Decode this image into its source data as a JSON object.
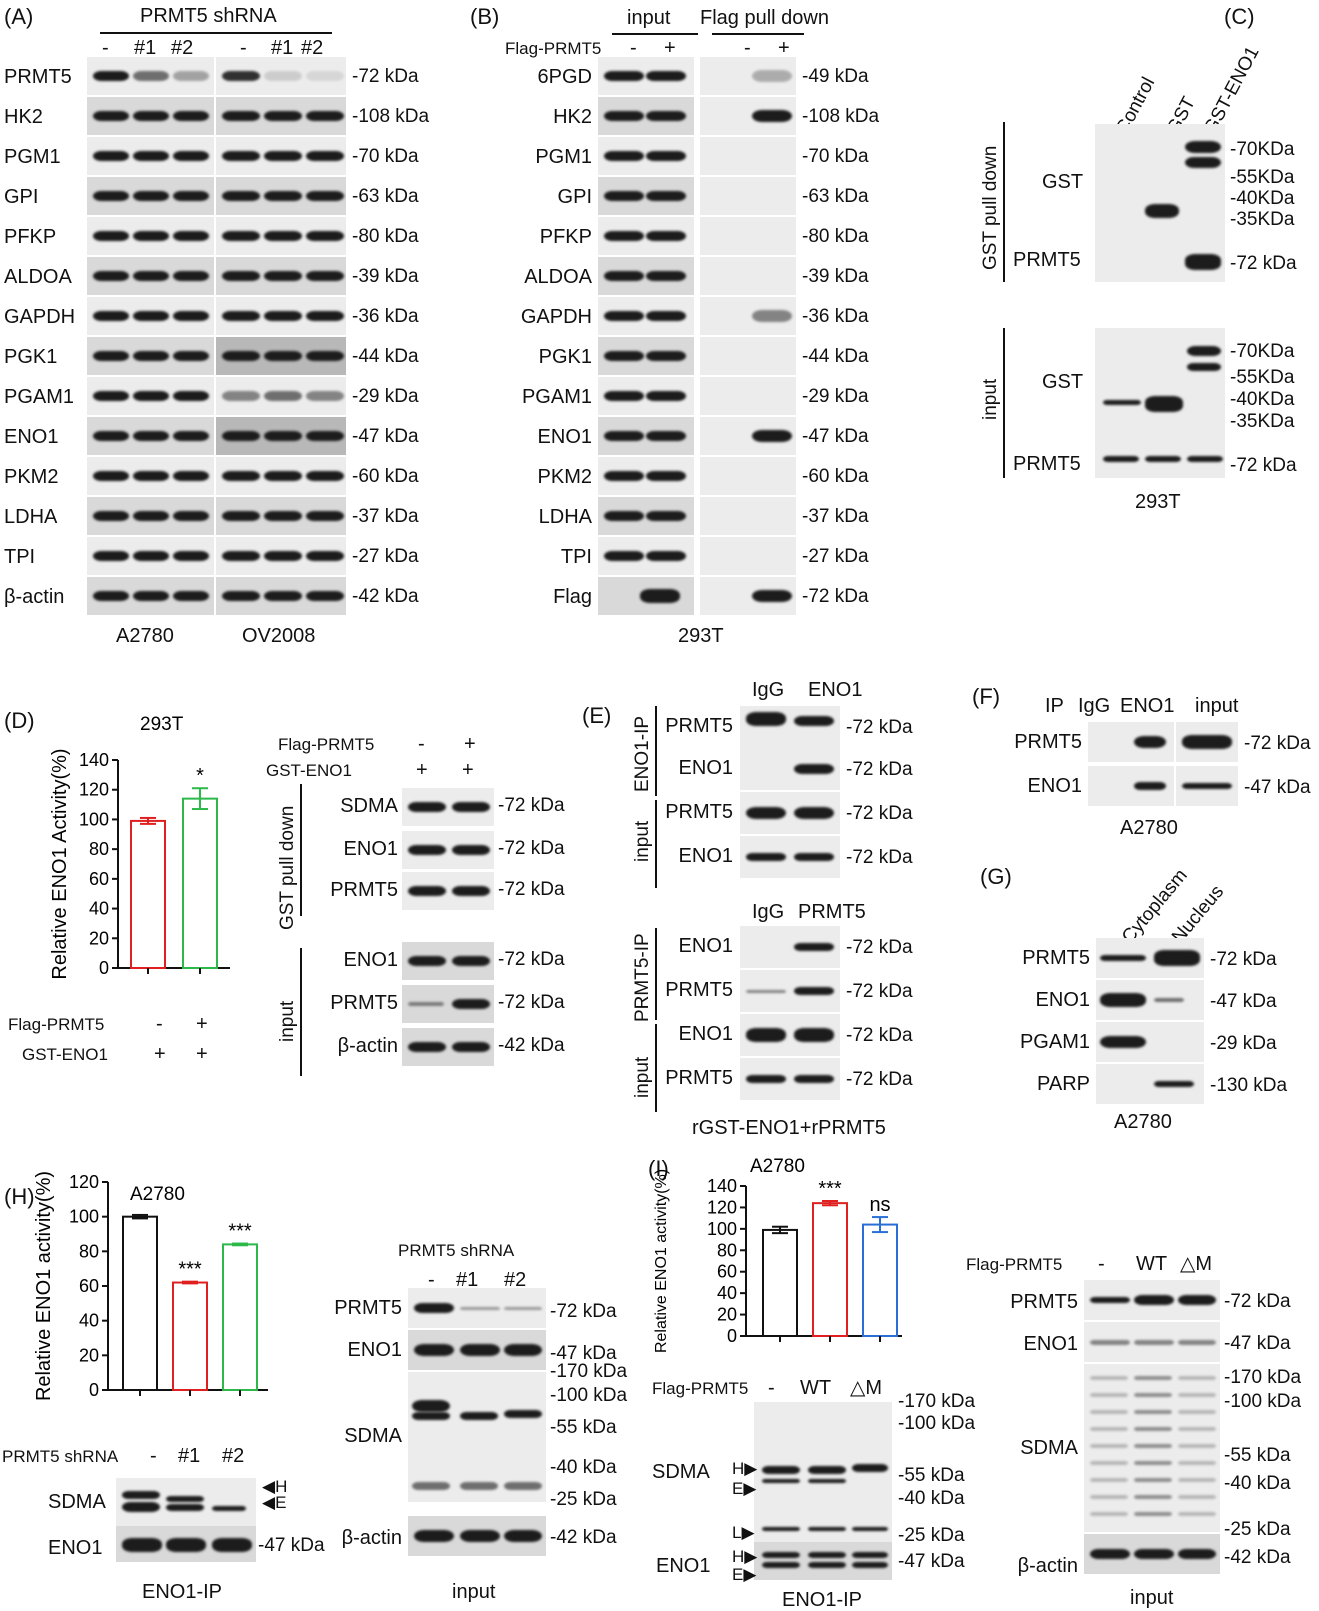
{
  "panelA": {
    "letter": "(A)",
    "header": "PRMT5 shRNA",
    "lanes": [
      "-",
      "#1",
      "#2",
      "-",
      "#1",
      "#2"
    ],
    "rows": [
      {
        "label": "PRMT5",
        "kda": "-72 kDa"
      },
      {
        "label": "HK2",
        "kda": "-108 kDa"
      },
      {
        "label": "PGM1",
        "kda": "-70 kDa"
      },
      {
        "label": "GPI",
        "kda": "-63 kDa"
      },
      {
        "label": "PFKP",
        "kda": "-80 kDa"
      },
      {
        "label": "ALDOA",
        "kda": "-39 kDa"
      },
      {
        "label": "GAPDH",
        "kda": "-36 kDa"
      },
      {
        "label": "PGK1",
        "kda": "-44 kDa"
      },
      {
        "label": "PGAM1",
        "kda": "-29 kDa"
      },
      {
        "label": "ENO1",
        "kda": "-47 kDa"
      },
      {
        "label": "PKM2",
        "kda": "-60 kDa"
      },
      {
        "label": "LDHA",
        "kda": "-37 kDa"
      },
      {
        "label": "TPI",
        "kda": "-27 kDa"
      },
      {
        "label": "β-actin",
        "kda": "-42 kDa"
      }
    ],
    "cells": [
      "A2780",
      "OV2008"
    ]
  },
  "panelB": {
    "letter": "(B)",
    "input": "input",
    "pulldown": "Flag pull down",
    "flag_label": "Flag-PRMT5",
    "lanes": [
      "-",
      "+",
      "-",
      "+"
    ],
    "rows": [
      {
        "label": "6PGD",
        "kda": "-49 kDa"
      },
      {
        "label": "HK2",
        "kda": "-108 kDa"
      },
      {
        "label": "PGM1",
        "kda": "-70 kDa"
      },
      {
        "label": "GPI",
        "kda": "-63 kDa"
      },
      {
        "label": "PFKP",
        "kda": "-80 kDa"
      },
      {
        "label": "ALDOA",
        "kda": "-39 kDa"
      },
      {
        "label": "GAPDH",
        "kda": "-36 kDa"
      },
      {
        "label": "PGK1",
        "kda": "-44 kDa"
      },
      {
        "label": "PGAM1",
        "kda": "-29 kDa"
      },
      {
        "label": "ENO1",
        "kda": "-47 kDa"
      },
      {
        "label": "PKM2",
        "kda": "-60 kDa"
      },
      {
        "label": "LDHA",
        "kda": "-37 kDa"
      },
      {
        "label": "TPI",
        "kda": "-27 kDa"
      },
      {
        "label": "Flag",
        "kda": "-72 kDa"
      }
    ],
    "cell": "293T"
  },
  "panelC": {
    "letter": "(C)",
    "lanes": [
      "Control",
      "GST",
      "GST-ENO1"
    ],
    "side_top": "GST pull down",
    "side_bottom": "input",
    "gst": "GST",
    "prmt5": "PRMT5",
    "markers": [
      "-70KDa",
      "-55KDa",
      "-40KDa",
      "-35KDa"
    ],
    "prmt5_kda": "-72 kDa",
    "cell": "293T"
  },
  "panelD": {
    "letter": "(D)",
    "chart_title": "293T",
    "flag_label": "Flag-PRMT5",
    "gst_label": "GST-ENO1",
    "lane_flag": [
      "-",
      "+"
    ],
    "lane_gst": [
      "+",
      "+"
    ],
    "side_top": "GST pull down",
    "side_bottom": "input",
    "rows": [
      {
        "label": "SDMA",
        "kda": "-72 kDa"
      },
      {
        "label": "ENO1",
        "kda": "-72 kDa"
      },
      {
        "label": "PRMT5",
        "kda": "-72 kDa"
      },
      {
        "label": "ENO1",
        "kda": "-72 kDa"
      },
      {
        "label": "PRMT5",
        "kda": "-72 kDa"
      },
      {
        "label": "β-actin",
        "kda": "-42 kDa"
      }
    ],
    "sig": "*"
  },
  "panelE": {
    "letter": "(E)",
    "top_lanes": [
      "IgG",
      "ENO1"
    ],
    "bottom_lanes": [
      "IgG",
      "PRMT5"
    ],
    "side_labels": [
      "ENO1-IP",
      "input",
      "PRMT5-IP",
      "input"
    ],
    "top_rows": [
      "PRMT5",
      "ENO1",
      "PRMT5",
      "ENO1"
    ],
    "bottom_rows": [
      "ENO1",
      "PRMT5",
      "ENO1",
      "PRMT5"
    ],
    "kda": "-72 kDa",
    "footer": "rGST-ENO1+rPRMT5"
  },
  "panelF": {
    "letter": "(F)",
    "lanes": [
      "IP",
      "IgG",
      "ENO1",
      "input"
    ],
    "rows": [
      {
        "label": "PRMT5",
        "kda": "-72 kDa"
      },
      {
        "label": "ENO1",
        "kda": "-47 kDa"
      }
    ],
    "cell": "A2780"
  },
  "panelG": {
    "letter": "(G)",
    "lanes": [
      "Cytoplasm",
      "Nucleus"
    ],
    "rows": [
      {
        "label": "PRMT5",
        "kda": "-72 kDa"
      },
      {
        "label": "ENO1",
        "kda": "-47 kDa"
      },
      {
        "label": "PGAM1",
        "kda": "-29 kDa"
      },
      {
        "label": "PARP",
        "kda": "-130 kDa"
      }
    ],
    "cell": "A2780"
  },
  "panelH": {
    "letter": "(H)",
    "chart_title": "A2780",
    "shrna_label": "PRMT5 shRNA",
    "lanes": [
      "-",
      "#1",
      "#2"
    ],
    "sig": [
      "***",
      "***"
    ],
    "ip_rows": [
      {
        "label": "SDMA"
      },
      {
        "label": "ENO1",
        "kda": "-47 kDa"
      }
    ],
    "he": [
      "H",
      "E"
    ],
    "ip_caption": "ENO1-IP",
    "input_header": "PRMT5 shRNA",
    "input_rows": [
      {
        "label": "PRMT5",
        "kda": "-72 kDa"
      },
      {
        "label": "ENO1",
        "kda": "-47 kDa"
      },
      {
        "label": "SDMA"
      },
      {
        "label": "β-actin",
        "kda": "-42 kDa"
      }
    ],
    "sdma_markers": [
      "-100 kDa",
      "-55 kDa",
      "-40 kDa",
      "-25 kDa"
    ],
    "top_marker": "-170 kDa",
    "input_caption": "input"
  },
  "panelI": {
    "letter": "(I)",
    "chart_title": "A2780",
    "flag_label": "Flag-PRMT5",
    "lanes": [
      "-",
      "WT",
      "△M"
    ],
    "sig": [
      "***",
      "ns"
    ],
    "ip_markers": [
      "-170 kDa",
      "-100 kDa",
      "-55 kDa",
      "-40 kDa",
      "-25 kDa"
    ],
    "ip_rows": [
      {
        "label": "SDMA"
      },
      {
        "label": "ENO1",
        "kda": "-47 kDa"
      }
    ],
    "hel": [
      "H",
      "E",
      "L"
    ],
    "ip_caption": "ENO1-IP",
    "input_rows": [
      {
        "label": "PRMT5",
        "kda": "-72 kDa"
      },
      {
        "label": "ENO1",
        "kda": "-47 kDa"
      },
      {
        "label": "SDMA"
      },
      {
        "label": "β-actin",
        "kda": "-42 kDa"
      }
    ],
    "sdma_markers": [
      "-170 kDa",
      "-100 kDa",
      "-55 kDa",
      "-40 kDa",
      "-25 kDa"
    ],
    "input_caption": "input"
  },
  "chart_data": [
    {
      "type": "bar",
      "title": "293T",
      "ylabel": "Relative ENO1 Activity(%)",
      "categories": [
        "-",
        "+"
      ],
      "values": [
        99,
        114
      ],
      "errors": [
        2,
        7
      ],
      "ylim": [
        0,
        140
      ],
      "yticks": [
        0,
        20,
        40,
        60,
        80,
        100,
        120,
        140
      ],
      "colors": [
        "#e02020",
        "#2db84a"
      ],
      "annotations": [
        "",
        "*"
      ]
    },
    {
      "type": "bar",
      "title": "A2780",
      "ylabel": "Relative ENO1 activity(%)",
      "categories": [
        "-",
        "#1",
        "#2"
      ],
      "values": [
        100,
        62,
        84
      ],
      "errors": [
        1,
        0.5,
        0.5
      ],
      "ylim": [
        0,
        120
      ],
      "yticks": [
        0,
        20,
        40,
        60,
        80,
        100,
        120
      ],
      "colors": [
        "#111111",
        "#e02020",
        "#2db84a"
      ],
      "annotations": [
        "",
        "***",
        "***"
      ]
    },
    {
      "type": "bar",
      "title": "A2780",
      "ylabel": "Relative ENO1 activity(%)",
      "categories": [
        "-",
        "WT",
        "△M"
      ],
      "values": [
        99,
        124,
        104
      ],
      "errors": [
        3,
        2,
        7
      ],
      "ylim": [
        0,
        140
      ],
      "yticks": [
        0,
        20,
        40,
        60,
        80,
        100,
        120,
        140
      ],
      "colors": [
        "#111111",
        "#e02020",
        "#2a6fd6"
      ],
      "annotations": [
        "",
        "***",
        "ns"
      ]
    }
  ]
}
